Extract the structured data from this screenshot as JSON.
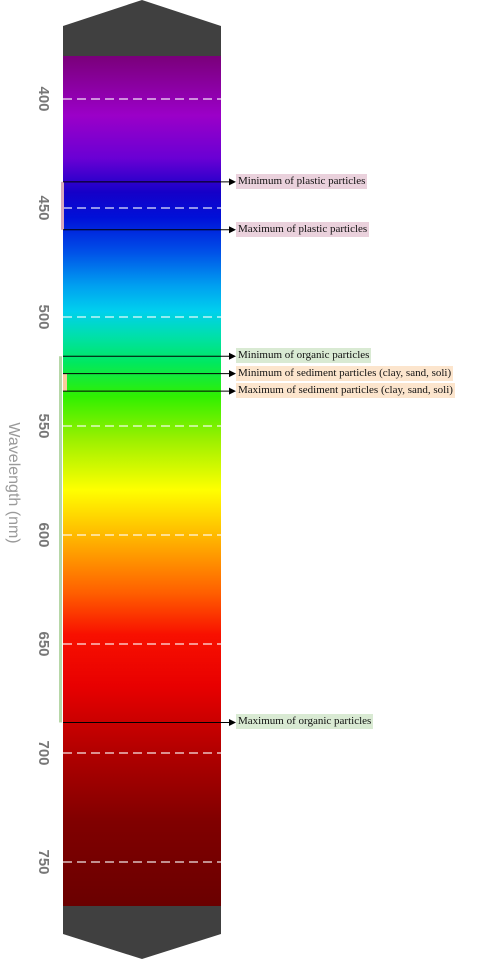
{
  "axis": {
    "title": "Wavelength (nm)",
    "ticks": [
      400,
      450,
      500,
      550,
      600,
      650,
      700,
      750
    ],
    "range": [
      380,
      776
    ]
  },
  "colors": {
    "cap": "#404040",
    "plastic_label_bg": "#ead1dc",
    "plastic_bracket": "#d8a8bc",
    "organic_label_bg": "#d9ead3",
    "organic_bracket": "#b6d7a8",
    "sediment_label_bg": "#fce5cd",
    "sediment_bracket": "#f9cb9c",
    "gridline": "#ffffff"
  },
  "annotations": [
    {
      "label": "Minimum of plastic particles",
      "group": "plastic",
      "wavelength": 438
    },
    {
      "label": "Maximum of plastic particles",
      "group": "plastic",
      "wavelength": 460
    },
    {
      "label": "Minimum of organic particles",
      "group": "organic",
      "wavelength": 518
    },
    {
      "label": "Minimum of sediment particles (clay, sand, soli)",
      "group": "sediment",
      "wavelength": 526
    },
    {
      "label": "Maximum of sediment particles (clay, sand, soli)",
      "group": "sediment",
      "wavelength": 534
    },
    {
      "label": "Maximum of organic particles",
      "group": "organic",
      "wavelength": 686
    }
  ],
  "ranges": [
    {
      "group": "plastic",
      "min": 438,
      "max": 460
    },
    {
      "group": "organic",
      "min": 518,
      "max": 686
    },
    {
      "group": "sediment",
      "min": 526,
      "max": 534
    }
  ]
}
